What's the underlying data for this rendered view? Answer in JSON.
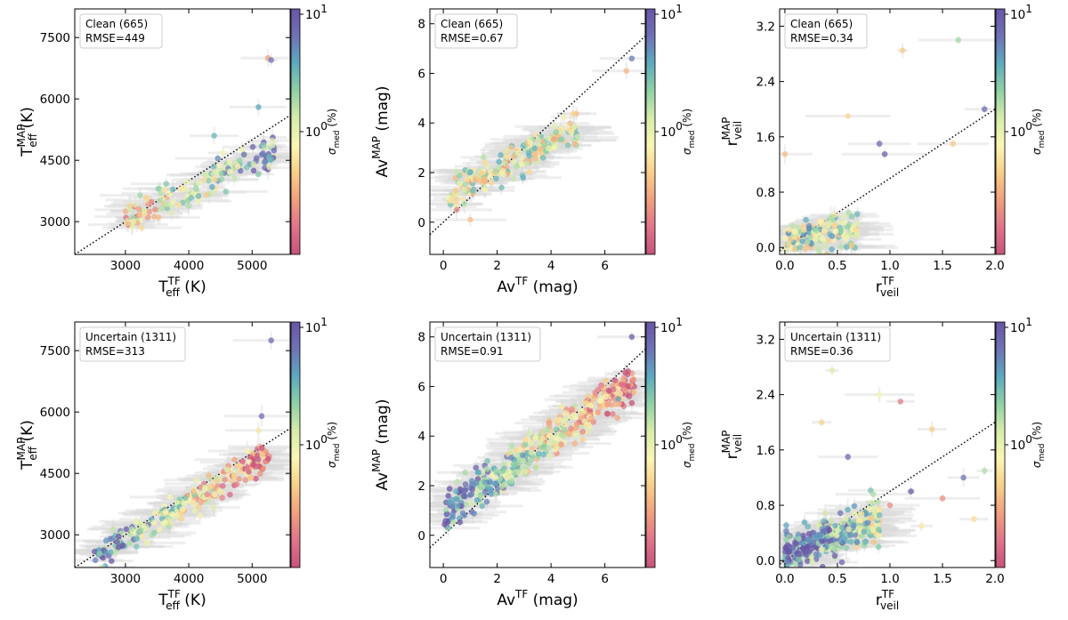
{
  "figure": {
    "colorbar_label": "σ",
    "colorbar_label_sub": "med",
    "colorbar_label_unit": "(%)",
    "colorbar_tick_10": "10",
    "colorbar_tick_10_exp": "1",
    "colorbar_tick_1": "10",
    "colorbar_tick_1_exp": "0",
    "colorbar_colors": [
      "#c7547a",
      "#e1748a",
      "#f0a07f",
      "#f8cf8a",
      "#fbf6b4",
      "#d7ecaa",
      "#8fd1a6",
      "#5daac0",
      "#6e73b6",
      "#6a55a6"
    ]
  },
  "chart_data": [
    {
      "type": "scatter",
      "panel": "clean-teff",
      "legend_line1": "Clean (665)",
      "legend_line2": "RMSE=449",
      "xlabel": "T",
      "xlabel_sup": "TF",
      "xlabel_sub": "eff",
      "xlabel_unit": " (K)",
      "ylabel": "T",
      "ylabel_sup": "MAP",
      "ylabel_sub": "eff",
      "ylabel_unit": " (K)",
      "xlim": [
        2200,
        5600
      ],
      "ylim": [
        2200,
        8200
      ],
      "xticks": [
        "3000",
        "4000",
        "5000"
      ],
      "xtick_values": [
        3000,
        4000,
        5000
      ],
      "yticks": [
        "3000",
        "4500",
        "6000",
        "7500"
      ],
      "ytick_values": [
        3000,
        4500,
        6000,
        7500
      ],
      "points": {
        "n": 160,
        "x_min": 3000,
        "x_max": 5350,
        "intercept": 900,
        "slope": 0.72,
        "scatter": 300,
        "sigma_trend": -0.6
      },
      "outliers": [
        [
          5250,
          7000
        ],
        [
          5300,
          6950
        ],
        [
          4400,
          5100
        ],
        [
          5100,
          5800
        ]
      ]
    },
    {
      "type": "scatter",
      "panel": "clean-av",
      "legend_line1": "Clean (665)",
      "legend_line2": "RMSE=0.67",
      "xlabel": "Av",
      "xlabel_sup": "TF",
      "xlabel_sub": "",
      "xlabel_unit": " (mag)",
      "ylabel": "Av",
      "ylabel_sup": "MAP",
      "ylabel_sub": "",
      "ylabel_unit": " (mag)",
      "xlim": [
        -0.5,
        7.5
      ],
      "ylim": [
        -1.3,
        8.6
      ],
      "xticks": [
        "0",
        "2",
        "4",
        "6"
      ],
      "xtick_values": [
        0,
        2,
        4,
        6
      ],
      "yticks": [
        "0",
        "2",
        "4",
        "6",
        "8"
      ],
      "ytick_values": [
        0,
        2,
        4,
        6,
        8
      ],
      "points": {
        "n": 220,
        "x_min": 0.2,
        "x_max": 5.0,
        "intercept": 1.0,
        "slope": 0.55,
        "scatter": 0.45,
        "sigma_trend": 0.0
      },
      "outliers": [
        [
          7.0,
          6.6
        ],
        [
          6.8,
          6.1
        ],
        [
          0.5,
          0.5
        ],
        [
          1.0,
          0.1
        ]
      ]
    },
    {
      "type": "scatter",
      "panel": "clean-veil",
      "legend_line1": "Clean (665)",
      "legend_line2": "RMSE=0.34",
      "xlabel": "r",
      "xlabel_sup": "TF",
      "xlabel_sub": "veil",
      "xlabel_unit": "",
      "ylabel": "r",
      "ylabel_sup": "MAP",
      "ylabel_sub": "veil",
      "ylabel_unit": "",
      "xlim": [
        -0.05,
        2.0
      ],
      "ylim": [
        -0.1,
        3.45
      ],
      "xticks": [
        "0.0",
        "0.5",
        "1.0",
        "1.5",
        "2.0"
      ],
      "xtick_values": [
        0,
        0.5,
        1.0,
        1.5,
        2.0
      ],
      "yticks": [
        "0.0",
        "0.8",
        "1.6",
        "2.4",
        "3.2"
      ],
      "ytick_values": [
        0,
        0.8,
        1.6,
        2.4,
        3.2
      ],
      "points": {
        "n": 150,
        "x_min": 0.0,
        "x_max": 0.7,
        "intercept": 0.1,
        "slope": 0.25,
        "scatter": 0.18,
        "sigma_trend": 0.2
      },
      "outliers": [
        [
          1.12,
          2.85
        ],
        [
          1.65,
          3.0
        ],
        [
          0.6,
          1.9
        ],
        [
          1.9,
          2.0
        ],
        [
          1.6,
          1.5
        ],
        [
          0.9,
          1.5
        ],
        [
          0.95,
          1.35
        ],
        [
          0.0,
          1.35
        ]
      ]
    },
    {
      "type": "scatter",
      "panel": "uncertain-teff",
      "legend_line1": "Uncertain (1311)",
      "legend_line2": "RMSE=313",
      "xlabel": "T",
      "xlabel_sup": "TF",
      "xlabel_sub": "eff",
      "xlabel_unit": " (K)",
      "ylabel": "T",
      "ylabel_sup": "MAP",
      "ylabel_sub": "eff",
      "ylabel_unit": " (K)",
      "xlim": [
        2200,
        5600
      ],
      "ylim": [
        2200,
        8200
      ],
      "xticks": [
        "3000",
        "4000",
        "5000"
      ],
      "xtick_values": [
        3000,
        4000,
        5000
      ],
      "yticks": [
        "3000",
        "4500",
        "6000",
        "7500"
      ],
      "ytick_values": [
        3000,
        4500,
        6000,
        7500
      ],
      "points": {
        "n": 260,
        "x_min": 2500,
        "x_max": 5300,
        "intercept": 100,
        "slope": 0.92,
        "scatter": 260,
        "sigma_trend": 0.9
      },
      "outliers": [
        [
          5300,
          7750
        ],
        [
          5150,
          5900
        ],
        [
          5100,
          5550
        ]
      ]
    },
    {
      "type": "scatter",
      "panel": "uncertain-av",
      "legend_line1": "Uncertain (1311)",
      "legend_line2": "RMSE=0.91",
      "xlabel": "Av",
      "xlabel_sup": "TF",
      "xlabel_sub": "",
      "xlabel_unit": " (mag)",
      "ylabel": "Av",
      "ylabel_sup": "MAP",
      "ylabel_sub": "",
      "ylabel_unit": " (mag)",
      "xlim": [
        -0.5,
        7.5
      ],
      "ylim": [
        -1.3,
        8.6
      ],
      "xticks": [
        "0",
        "2",
        "4",
        "6"
      ],
      "xtick_values": [
        0,
        2,
        4,
        6
      ],
      "yticks": [
        "0",
        "2",
        "4",
        "6",
        "8"
      ],
      "ytick_values": [
        0,
        2,
        4,
        6,
        8
      ],
      "points": {
        "n": 420,
        "x_min": 0.0,
        "x_max": 7.1,
        "intercept": 0.9,
        "slope": 0.75,
        "scatter": 0.55,
        "sigma_trend": 0.9
      },
      "outliers": [
        [
          7.0,
          8.0
        ],
        [
          6.5,
          5.5
        ]
      ]
    },
    {
      "type": "scatter",
      "panel": "uncertain-veil",
      "legend_line1": "Uncertain (1311)",
      "legend_line2": "RMSE=0.36",
      "xlabel": "r",
      "xlabel_sup": "TF",
      "xlabel_sub": "veil",
      "xlabel_unit": "",
      "ylabel": "r",
      "ylabel_sup": "MAP",
      "ylabel_sub": "veil",
      "ylabel_unit": "",
      "xlim": [
        -0.05,
        2.0
      ],
      "ylim": [
        -0.1,
        3.45
      ],
      "xticks": [
        "0.0",
        "0.5",
        "1.0",
        "1.5",
        "2.0"
      ],
      "xtick_values": [
        0,
        0.5,
        1.0,
        1.5,
        2.0
      ],
      "yticks": [
        "0.0",
        "0.8",
        "1.6",
        "2.4",
        "3.2"
      ],
      "ytick_values": [
        0,
        0.8,
        1.6,
        2.4,
        3.2
      ],
      "points": {
        "n": 330,
        "x_min": 0.0,
        "x_max": 0.9,
        "intercept": 0.1,
        "slope": 0.55,
        "scatter": 0.22,
        "sigma_trend": 0.9
      },
      "outliers": [
        [
          0.45,
          2.75
        ],
        [
          0.9,
          2.4
        ],
        [
          1.1,
          2.3
        ],
        [
          1.4,
          1.9
        ],
        [
          0.35,
          2.0
        ],
        [
          0.6,
          1.5
        ],
        [
          1.2,
          1.0
        ],
        [
          1.7,
          1.2
        ],
        [
          1.9,
          1.3
        ],
        [
          1.5,
          0.9
        ],
        [
          1.8,
          0.6
        ],
        [
          1.3,
          0.5
        ],
        [
          1.0,
          0.8
        ]
      ]
    }
  ]
}
